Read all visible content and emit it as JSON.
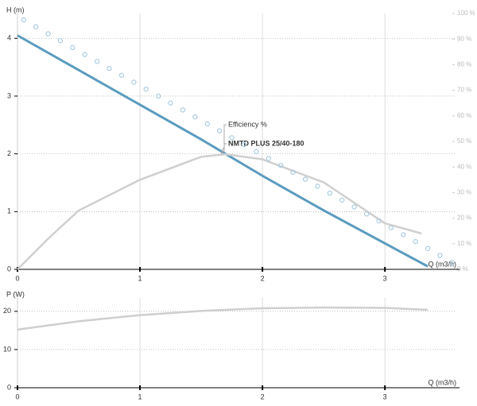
{
  "chart_data": [
    {
      "type": "line",
      "ylabel": "H (m)",
      "xlabel": "Q (m3/h)",
      "xlim": [
        0,
        3.57
      ],
      "xticks": [
        0,
        1,
        2,
        3
      ],
      "ylim": [
        0,
        4.43
      ],
      "yticks": [
        0,
        1,
        2,
        3,
        4
      ],
      "y2lim": [
        0,
        100
      ],
      "y2ticks": [
        {
          "value": 0,
          "label": "0 %"
        },
        {
          "value": 10,
          "label": "10 %"
        },
        {
          "value": 20,
          "label": "20 %"
        },
        {
          "value": 30,
          "label": "30 %"
        },
        {
          "value": 40,
          "label": "40 %"
        },
        {
          "value": 50,
          "label": "50 %"
        },
        {
          "value": 60,
          "label": "60 %"
        },
        {
          "value": 70,
          "label": "70 %"
        },
        {
          "value": 80,
          "label": "80 %"
        },
        {
          "value": 90,
          "label": "90 %"
        },
        {
          "value": 100,
          "label": "100 %"
        }
      ],
      "grid": true,
      "series": [
        {
          "name": "NMTD PLUS 25/40-180",
          "color": "#5b9bbf",
          "x": [
            0,
            0.5,
            1,
            1.5,
            2,
            2.5,
            3,
            3.35
          ],
          "values": [
            4.05,
            3.45,
            2.85,
            2.25,
            1.62,
            1.02,
            0.45,
            0.05
          ]
        },
        {
          "name": "Efficiency %",
          "color": "#cfcfcf",
          "axis": "y2",
          "x": [
            0,
            0.25,
            0.5,
            1,
            1.5,
            1.7,
            2,
            2.5,
            3,
            3.3
          ],
          "values": [
            0,
            12,
            23,
            35,
            44,
            45,
            43,
            34,
            18,
            14
          ]
        },
        {
          "color": "#a9cde2",
          "style": "markers",
          "x": [
            0.05,
            0.15,
            0.25,
            0.35,
            0.45,
            0.55,
            0.65,
            0.75,
            0.85,
            0.95,
            1.05,
            1.15,
            1.25,
            1.35,
            1.45,
            1.55,
            1.65,
            1.75,
            1.85,
            1.95,
            2.05,
            2.15,
            2.25,
            2.35,
            2.45,
            2.55,
            2.65,
            2.75,
            2.85,
            2.95,
            3.05,
            3.15,
            3.25,
            3.35,
            3.45,
            3.55
          ],
          "values": [
            4.32,
            4.2,
            4.08,
            3.96,
            3.84,
            3.72,
            3.6,
            3.48,
            3.36,
            3.24,
            3.12,
            3.0,
            2.88,
            2.76,
            2.64,
            2.52,
            2.4,
            2.28,
            2.16,
            2.04,
            1.92,
            1.8,
            1.68,
            1.56,
            1.44,
            1.32,
            1.2,
            1.08,
            0.96,
            0.84,
            0.72,
            0.6,
            0.48,
            0.36,
            0.24,
            0.12
          ]
        }
      ]
    },
    {
      "type": "line",
      "ylabel": "P (W)",
      "xlabel": "Q (m3/h)",
      "xlim": [
        0,
        3.57
      ],
      "xticks": [
        0,
        1,
        2,
        3
      ],
      "ylim": [
        0,
        23.5
      ],
      "yticks": [
        0,
        10,
        20
      ],
      "grid": true,
      "series": [
        {
          "color": "#cfcfcf",
          "x": [
            0,
            0.5,
            1,
            1.5,
            2,
            2.5,
            3,
            3.35
          ],
          "values": [
            15.2,
            17.4,
            19,
            20.1,
            20.8,
            21,
            20.9,
            20.4
          ]
        }
      ]
    }
  ]
}
